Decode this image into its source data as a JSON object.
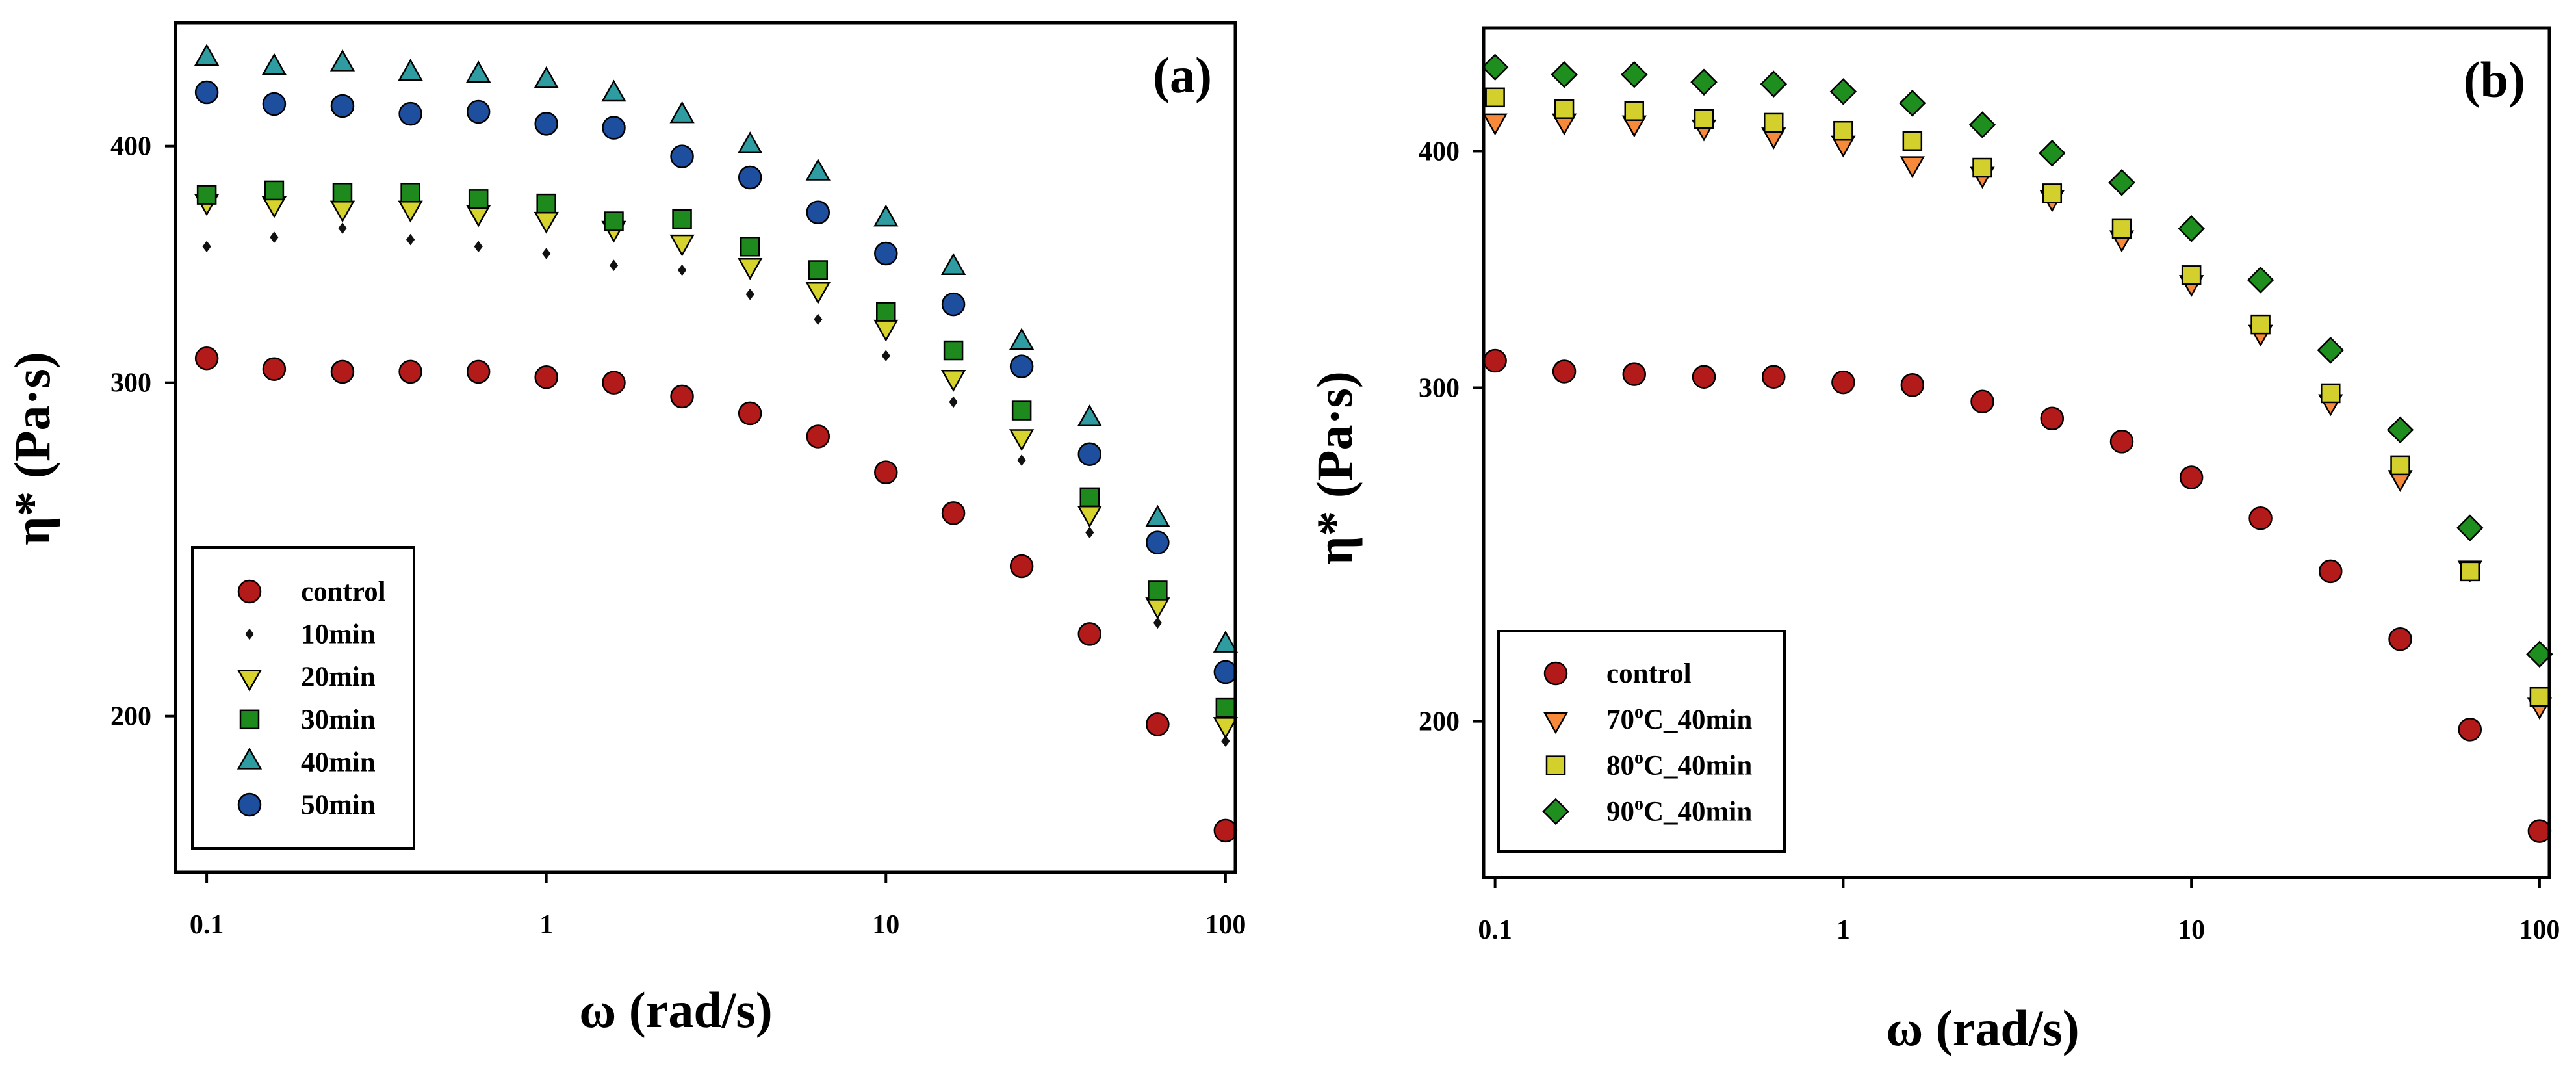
{
  "chart_data": [
    {
      "panel_label": "(a)",
      "type": "scatter",
      "xlabel": "ω (rad/s)",
      "ylabel": "η* (Pa·s)",
      "xscale": "log",
      "yscale": "log",
      "xlim": [
        0.0809,
        106.9
      ],
      "ylim": [
        165.4,
        464.7
      ],
      "xticks": [
        0.1,
        1,
        10,
        100
      ],
      "xticklabels": [
        "0.1",
        "1",
        "10",
        "100"
      ],
      "yticks": [
        200,
        300,
        400
      ],
      "yticklabels": [
        "200",
        "300",
        "400"
      ],
      "grid": false,
      "legend_position": "bottom-left",
      "x": [
        0.1,
        0.158,
        0.251,
        0.398,
        0.631,
        1,
        1.58,
        2.51,
        3.98,
        6.31,
        10,
        15.8,
        25.1,
        39.8,
        63.1,
        100
      ],
      "series": [
        {
          "label_parts": [
            "control"
          ],
          "marker": "circle",
          "color": "#B31B1B",
          "values": [
            309,
            305,
            304,
            304,
            304,
            302,
            300,
            295,
            289,
            281,
            269,
            256,
            240,
            221,
            198,
            174
          ]
        },
        {
          "label_parts": [
            "10min"
          ],
          "marker": "diamond-small",
          "color": "#111111",
          "values": [
            354,
            358,
            362,
            357,
            354,
            351,
            346,
            344,
            334,
            324,
            310,
            293,
            273,
            250,
            224,
            194
          ]
        },
        {
          "label_parts": [
            "20min"
          ],
          "marker": "triangle-down",
          "color": "#D6D22E",
          "values": [
            374,
            373,
            371,
            371,
            369,
            366,
            362,
            356,
            346,
            336,
            321,
            302,
            281,
            256,
            229,
            198
          ]
        },
        {
          "label_parts": [
            "30min"
          ],
          "marker": "square",
          "color": "#1E8A1E",
          "values": [
            377,
            379,
            378,
            378,
            375,
            373,
            365,
            366,
            354,
            344,
            327,
            312,
            290,
            261,
            233,
            202
          ]
        },
        {
          "label_parts": [
            "40min"
          ],
          "marker": "triangle-up",
          "color": "#2E9CA0",
          "values": [
            445,
            440,
            442,
            437,
            436,
            433,
            426,
            415,
            400,
            387,
            366,
            345,
            315,
            287,
            254,
            218
          ]
        },
        {
          "label_parts": [
            "50min"
          ],
          "marker": "circle",
          "color": "#1D4F9E",
          "values": [
            427,
            421,
            420,
            416,
            417,
            411,
            409,
            395,
            385,
            369,
            351,
            330,
            306,
            275,
            247,
            211
          ]
        }
      ]
    },
    {
      "panel_label": "(b)",
      "type": "scatter",
      "xlabel": "ω (rad/s)",
      "ylabel": "η* (Pa·s)",
      "xscale": "log",
      "yscale": "log",
      "xlim": [
        0.0927,
        106.7
      ],
      "ylim": [
        165.4,
        464.6
      ],
      "xticks": [
        0.1,
        1,
        10,
        100
      ],
      "xticklabels": [
        "0.1",
        "1",
        "10",
        "100"
      ],
      "yticks": [
        200,
        300,
        400
      ],
      "yticklabels": [
        "200",
        "300",
        "400"
      ],
      "grid": false,
      "legend_position": "bottom-left",
      "x": [
        0.1,
        0.158,
        0.251,
        0.398,
        0.631,
        1,
        1.58,
        2.51,
        3.98,
        6.31,
        10,
        15.8,
        25.1,
        39.8,
        63.1,
        100
      ],
      "series": [
        {
          "label_parts": [
            "control"
          ],
          "marker": "circle",
          "color": "#B31B1B",
          "values": [
            310,
            306,
            305,
            304,
            304,
            302,
            301,
            295,
            289,
            281,
            269,
            256,
            240,
            221,
            198,
            175
          ]
        },
        {
          "label_parts": [
            "70",
            "o",
            "C_40min"
          ],
          "marker": "triangle-down",
          "color": "#F7893A",
          "values": [
            415,
            415,
            414,
            412,
            408,
            404,
            394,
            389,
            378,
            360,
            341,
            321,
            295,
            269,
            241,
            204
          ]
        },
        {
          "label_parts": [
            "80",
            "o",
            "C_40min"
          ],
          "marker": "square",
          "color": "#D3CF2C",
          "values": [
            427,
            421,
            420,
            416,
            414,
            410,
            405,
            392,
            380,
            364,
            344,
            324,
            298,
            273,
            240,
            206
          ]
        },
        {
          "label_parts": [
            "90",
            "o",
            "C_40min"
          ],
          "marker": "diamond",
          "color": "#1E8E1E",
          "values": [
            443,
            439,
            439,
            435,
            434,
            430,
            424,
            413,
            399,
            385,
            364,
            342,
            314,
            285,
            253,
            217
          ]
        }
      ]
    }
  ]
}
